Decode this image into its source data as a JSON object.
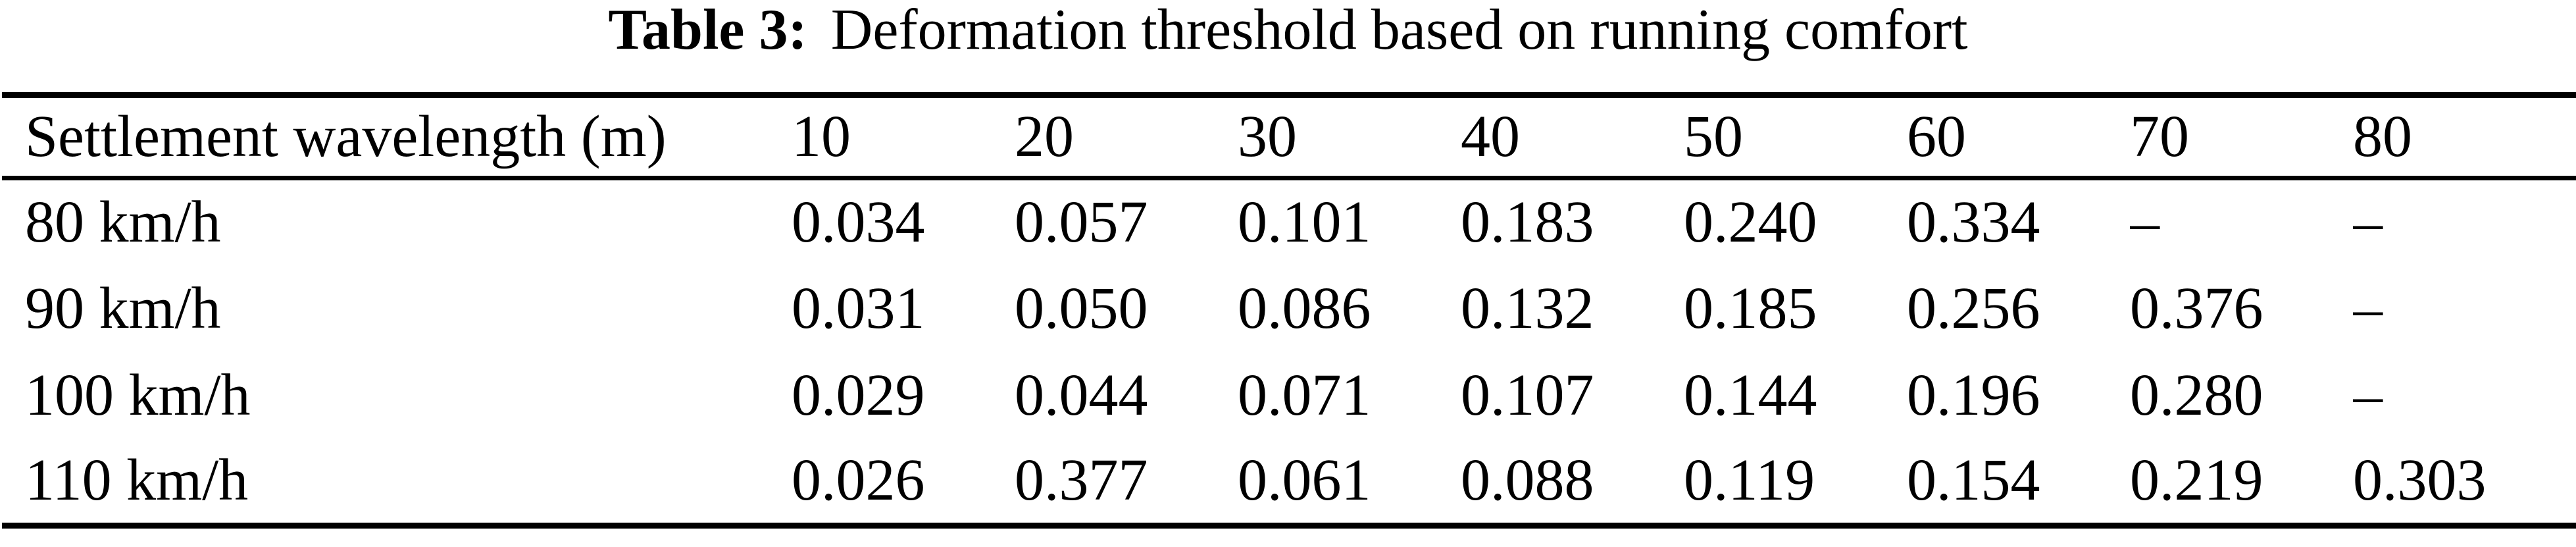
{
  "caption": {
    "label": "Table 3:",
    "text": "Deformation threshold based on running comfort"
  },
  "table": {
    "header": [
      "Settlement wavelength (m)",
      "10",
      "20",
      "30",
      "40",
      "50",
      "60",
      "70",
      "80"
    ],
    "rows": [
      {
        "label": "80 km/h",
        "values": [
          "0.034",
          "0.057",
          "0.101",
          "0.183",
          "0.240",
          "0.334",
          "–",
          "–"
        ]
      },
      {
        "label": "90 km/h",
        "values": [
          "0.031",
          "0.050",
          "0.086",
          "0.132",
          "0.185",
          "0.256",
          "0.376",
          "–"
        ]
      },
      {
        "label": "100 km/h",
        "values": [
          "0.029",
          "0.044",
          "0.071",
          "0.107",
          "0.144",
          "0.196",
          "0.280",
          "–"
        ]
      },
      {
        "label": "110 km/h",
        "values": [
          "0.026",
          "0.377",
          "0.061",
          "0.088",
          "0.119",
          "0.154",
          "0.219",
          "0.303"
        ]
      }
    ]
  },
  "chart_data": {
    "type": "table",
    "title": "Table 3: Deformation threshold based on running comfort",
    "columns": [
      "Settlement wavelength (m)",
      "10",
      "20",
      "30",
      "40",
      "50",
      "60",
      "70",
      "80"
    ],
    "rows": [
      [
        "80 km/h",
        "0.034",
        "0.057",
        "0.101",
        "0.183",
        "0.240",
        "0.334",
        "–",
        "–"
      ],
      [
        "90 km/h",
        "0.031",
        "0.050",
        "0.086",
        "0.132",
        "0.185",
        "0.256",
        "0.376",
        "–"
      ],
      [
        "100 km/h",
        "0.029",
        "0.044",
        "0.071",
        "0.107",
        "0.144",
        "0.196",
        "0.280",
        "–"
      ],
      [
        "110 km/h",
        "0.026",
        "0.377",
        "0.061",
        "0.088",
        "0.119",
        "0.154",
        "0.219",
        "0.303"
      ]
    ],
    "missing_value_marker": "–"
  },
  "colors": {
    "text": "#000000",
    "background": "#ffffff",
    "rule": "#000000"
  }
}
